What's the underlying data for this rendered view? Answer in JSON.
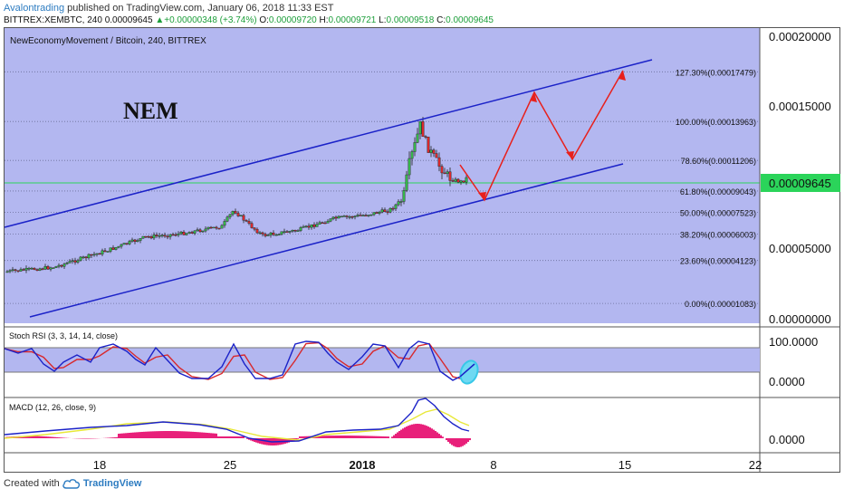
{
  "header": {
    "author": "Avalontrading",
    "published_text": "published on TradingView.com, January 06, 2018 11:33 EST",
    "symbol": "BITTREX:XEMBTC, 240",
    "last_price": "0.00009645",
    "change": "+0.00000348 (+3.74%)",
    "open_label": "O:",
    "open": "0.00009720",
    "high_label": "H:",
    "high": "0.00009721",
    "low_label": "L:",
    "low": "0.00009518",
    "close_label": "C:",
    "close": "0.00009645"
  },
  "main_pane": {
    "title": "NewEconomyMovement / Bitcoin, 240, BITTREX",
    "annotation": "NEM",
    "price_axis": [
      "0.00020000",
      "0.00015000",
      "0.00005000",
      "0.00000000"
    ],
    "current_price_label": "0.00009645",
    "fib_levels": [
      {
        "label": "127.30%(0.00017479)",
        "value": 0.00017479
      },
      {
        "label": "100.00%(0.00013963)",
        "value": 0.00013963
      },
      {
        "label": "78.60%(0.00011206)",
        "value": 0.00011206
      },
      {
        "label": "61.80%(0.00009043)",
        "value": 9.043e-05
      },
      {
        "label": "50.00%(0.00007523)",
        "value": 7.523e-05
      },
      {
        "label": "38.20%(0.00006003)",
        "value": 6.003e-05
      },
      {
        "label": "23.60%(0.00004123)",
        "value": 4.123e-05
      },
      {
        "label": "0.00%(0.00001083)",
        "value": 1.083e-05
      }
    ],
    "colors": {
      "background": "#b3b7f0",
      "channel": "#1b22c8",
      "projection": "#e8201c",
      "candle_up": "#36b54a",
      "candle_down": "#d8282c",
      "price_line": "#2bd45a"
    }
  },
  "rsi_pane": {
    "title": "Stoch RSI (3, 3, 14, 14, close)",
    "axis": [
      "100.0000",
      "0.0000"
    ],
    "colors": {
      "k": "#1b22c8",
      "d": "#d8282c",
      "marker": "#38c8e8"
    }
  },
  "macd_pane": {
    "title": "MACD (12, 26, close, 9)",
    "axis": [
      "0.0000"
    ],
    "colors": {
      "macd": "#1b22c8",
      "signal": "#e8e838",
      "histogram": "#e8207a"
    }
  },
  "time_axis": [
    "18",
    "25",
    "2018",
    "8",
    "15",
    "22"
  ],
  "footer": {
    "created_with": "Created with",
    "brand": "TradingView"
  }
}
